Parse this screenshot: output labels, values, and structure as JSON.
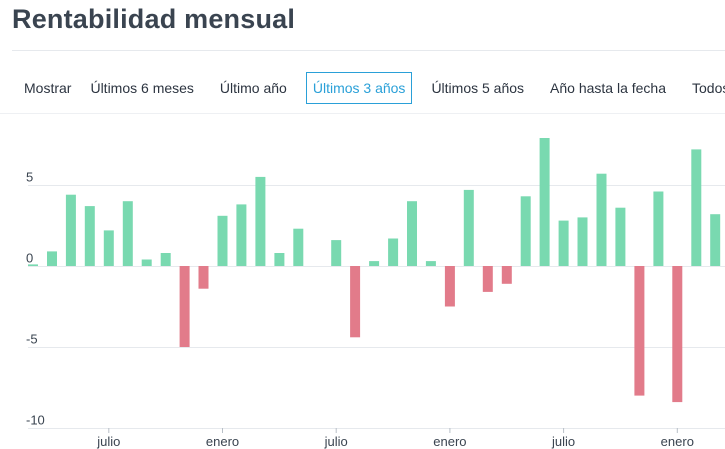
{
  "page": {
    "title": "Rentabilidad mensual"
  },
  "range_selector": {
    "label": "Mostrar",
    "options": [
      "Últimos 6 meses",
      "Último año",
      "Últimos 3 años",
      "Últimos 5 años",
      "Año hasta la fecha",
      "Todos"
    ],
    "selected": "Últimos 3 años"
  },
  "colors": {
    "positive": "#79d9b0",
    "negative": "#e27b8a",
    "grid": "#e6e9ed",
    "text": "#3a4450",
    "accent": "#2aa0d8"
  },
  "chart_data": {
    "type": "bar",
    "title": "",
    "xlabel": "",
    "ylabel": "",
    "ylim": [
      -10,
      8.5
    ],
    "yticks": [
      5,
      0,
      -5,
      -10
    ],
    "grid": true,
    "values": [
      0.1,
      0.9,
      4.4,
      3.7,
      2.2,
      4.0,
      0.4,
      0.8,
      -5.0,
      -1.4,
      3.1,
      3.8,
      5.5,
      0.8,
      2.3,
      0.0,
      1.6,
      -4.4,
      0.3,
      1.7,
      4.0,
      0.3,
      -2.5,
      4.7,
      -1.6,
      -1.1,
      4.3,
      7.9,
      2.8,
      3.0,
      5.7,
      3.6,
      -8.0,
      4.6,
      -8.4,
      7.2,
      3.2
    ],
    "x_tick_labels": [
      {
        "label": "julio",
        "index": 4
      },
      {
        "label": "enero",
        "index": 10
      },
      {
        "label": "julio",
        "index": 16
      },
      {
        "label": "enero",
        "index": 22
      },
      {
        "label": "julio",
        "index": 28
      },
      {
        "label": "enero",
        "index": 34
      }
    ]
  }
}
